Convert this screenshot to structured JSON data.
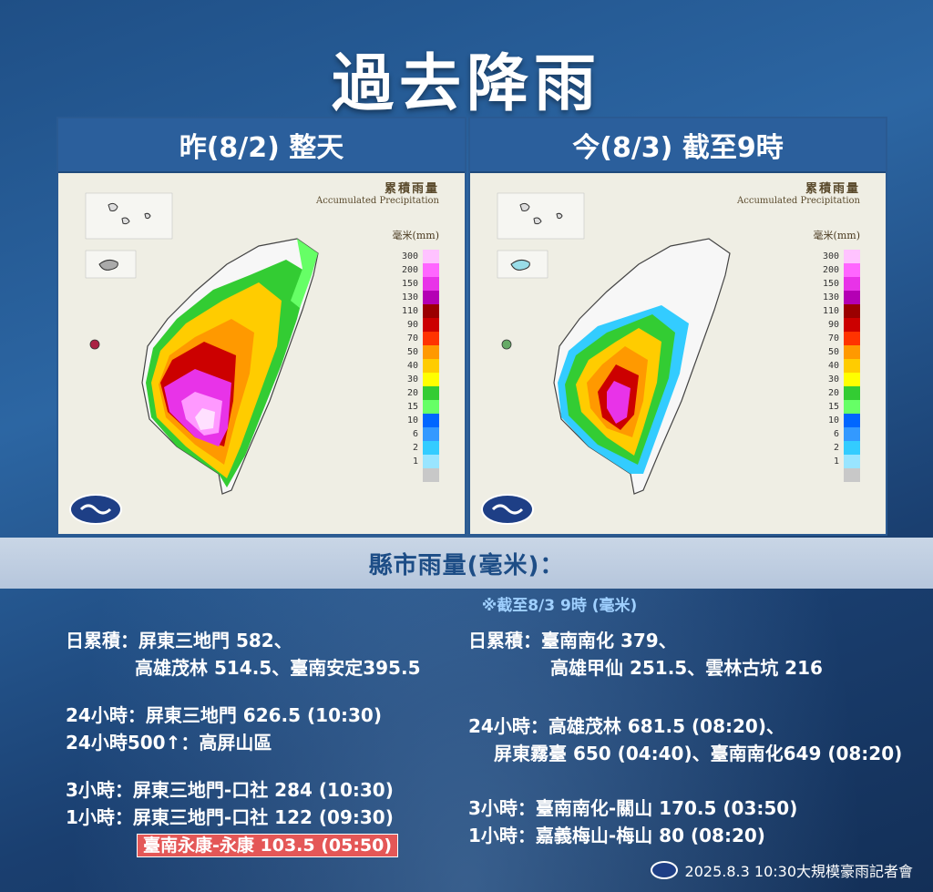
{
  "title": "過去降雨",
  "panels": {
    "left": {
      "heading": "昨(8/2) 整天"
    },
    "right": {
      "heading": "今(8/3) 截至9時"
    }
  },
  "legend": {
    "title_zh": "累積雨量",
    "title_en": "Accumulated Precipitation",
    "unit": "毫米(mm)",
    "levels": [
      {
        "label": "300",
        "color": "#ffc2ff"
      },
      {
        "label": "200",
        "color": "#ff66ff"
      },
      {
        "label": "150",
        "color": "#e833e8"
      },
      {
        "label": "130",
        "color": "#b400b4"
      },
      {
        "label": "110",
        "color": "#9b0000"
      },
      {
        "label": "90",
        "color": "#cc0000"
      },
      {
        "label": "70",
        "color": "#ff3300"
      },
      {
        "label": "50",
        "color": "#ff9900"
      },
      {
        "label": "40",
        "color": "#ffcc00"
      },
      {
        "label": "30",
        "color": "#ffff00"
      },
      {
        "label": "20",
        "color": "#33cc33"
      },
      {
        "label": "15",
        "color": "#66ff66"
      },
      {
        "label": "10",
        "color": "#0066ff"
      },
      {
        "label": "6",
        "color": "#3399ff"
      },
      {
        "label": "2",
        "color": "#33ccff"
      },
      {
        "label": "1",
        "color": "#99e5ff"
      },
      {
        "label": "",
        "color": "#c8c8c8"
      }
    ]
  },
  "band_title": "縣市雨量(毫米)：",
  "note": "※截至8/3 9時 (毫米)",
  "left_stats": {
    "daily_label": "日累積：",
    "daily_1": "屏東三地門 582、",
    "daily_2": "高雄茂林 514.5、臺南安定395.5",
    "h24": "24小時：屏東三地門 626.5 (10:30)",
    "h24_500": "24小時500↑：高屏山區",
    "h3": "3小時：屏東三地門-口社 284 (10:30)",
    "h1": "1小時：屏東三地門-口社 122 (09:30)",
    "h1_highlight": "臺南永康-永康 103.5 (05:50)"
  },
  "right_stats": {
    "daily_label": "日累積：",
    "daily_1": "臺南南化 379、",
    "daily_2": "高雄甲仙 251.5、雲林古坑 216",
    "h24_1": "24小時：高雄茂林 681.5 (08:20)、",
    "h24_2": "屏東霧臺 650 (04:40)、臺南南化649 (08:20)",
    "h3": "3小時：臺南南化-關山 170.5 (03:50)",
    "h1": "1小時：嘉義梅山-梅山 80 (08:20)"
  },
  "footer": "2025.8.3 10:30大規模豪雨記者會"
}
